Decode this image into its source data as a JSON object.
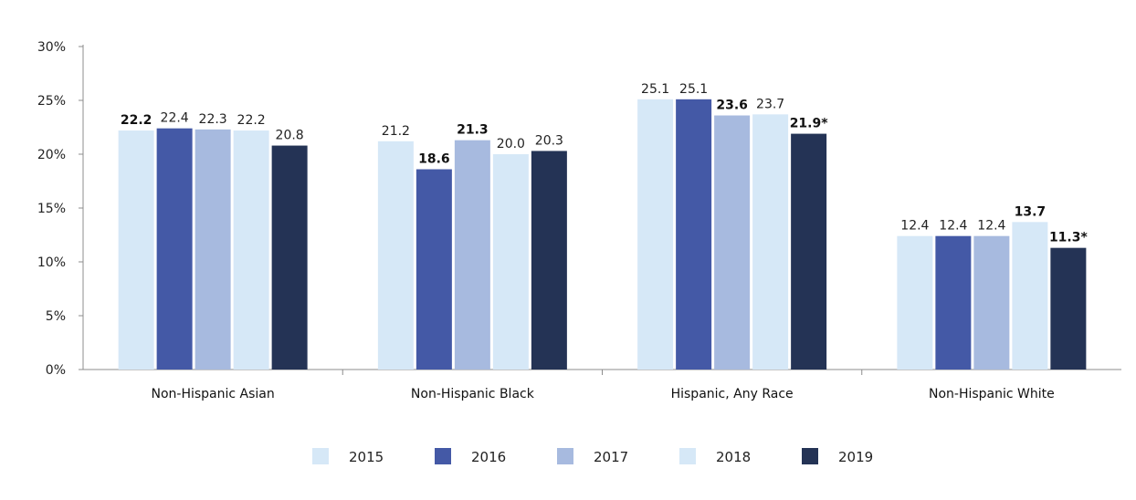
{
  "chart_data": {
    "type": "bar",
    "categories": [
      "Non-Hispanic Asian",
      "Non-Hispanic Black",
      "Hispanic, Any Race",
      "Non-Hispanic White"
    ],
    "series": [
      {
        "name": "2015",
        "color": "#d6e8f7",
        "values": [
          22.2,
          21.2,
          25.1,
          12.4
        ],
        "labels": [
          "22.2",
          "21.2",
          "25.1",
          "12.4"
        ],
        "bold": [
          true,
          false,
          false,
          false
        ]
      },
      {
        "name": "2016",
        "color": "#4459a6",
        "values": [
          22.4,
          18.6,
          25.1,
          12.4
        ],
        "labels": [
          "22.4",
          "18.6",
          "25.1",
          "12.4"
        ],
        "bold": [
          false,
          true,
          false,
          false
        ]
      },
      {
        "name": "2017",
        "color": "#a7badf",
        "values": [
          22.3,
          21.3,
          23.6,
          12.4
        ],
        "labels": [
          "22.3",
          "21.3",
          "23.6",
          "12.4"
        ],
        "bold": [
          false,
          true,
          true,
          false
        ]
      },
      {
        "name": "2018",
        "color": "#d6e8f7",
        "values": [
          22.2,
          20.0,
          23.7,
          13.7
        ],
        "labels": [
          "22.2",
          "20.0",
          "23.7",
          "13.7"
        ],
        "bold": [
          false,
          false,
          false,
          true
        ]
      },
      {
        "name": "2019",
        "color": "#243355",
        "values": [
          20.8,
          20.3,
          21.9,
          11.3
        ],
        "labels": [
          "20.8",
          "20.3",
          "21.9*",
          "11.3*"
        ],
        "bold": [
          false,
          false,
          true,
          true
        ]
      }
    ],
    "yticks": [
      "0%",
      "5%",
      "10%",
      "15%",
      "20%",
      "25%",
      "30%"
    ],
    "ylim": [
      0,
      30
    ],
    "grid": false,
    "legend": "bottom-center"
  }
}
